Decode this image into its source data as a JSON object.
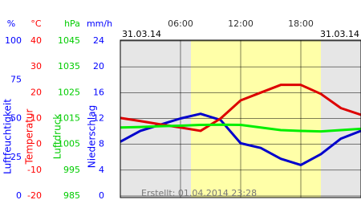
{
  "chart_data": {
    "type": "line",
    "date_left": "31.03.14",
    "date_right": "31.03.14",
    "footer": "Erstellt: 01.04.2014 23:28",
    "x": [
      0,
      2,
      4,
      6,
      8,
      10,
      12,
      14,
      16,
      18,
      20,
      22,
      24
    ],
    "xlim": [
      0,
      24
    ],
    "xticks": [
      {
        "value": 6,
        "label": "06:00"
      },
      {
        "value": 12,
        "label": "12:00"
      },
      {
        "value": 18,
        "label": "18:00"
      }
    ],
    "y_axes": [
      {
        "unit": "%",
        "title": "Luftfeuchtigkeit",
        "color": "#0000ff",
        "ylim": [
          0,
          100
        ],
        "yticks": [
          100,
          75,
          50,
          25,
          0
        ]
      },
      {
        "unit": "°C",
        "title": "Temperatur",
        "color": "#ff0000",
        "ylim": [
          -20,
          40
        ],
        "yticks": [
          40,
          30,
          20,
          10,
          0,
          -10,
          -20
        ]
      },
      {
        "unit": "hPa",
        "title": "Luftdruck",
        "color": "#00cc00",
        "ylim": [
          985,
          1045
        ],
        "yticks": [
          1045,
          1035,
          1025,
          1015,
          1005,
          995,
          985
        ]
      },
      {
        "unit": "mm/h",
        "title": "Niederschlag",
        "color": "#0000ff",
        "ylim": [
          0,
          24
        ],
        "yticks": [
          24,
          20,
          16,
          12,
          8,
          4,
          0
        ]
      }
    ],
    "series": [
      {
        "axis": 0,
        "color": "#0000cc",
        "values": [
          35,
          42,
          46,
          50,
          53,
          49,
          34,
          31,
          24,
          20,
          27,
          37,
          42
        ]
      },
      {
        "axis": 1,
        "color": "#dd0000",
        "values": [
          10.2,
          9,
          7.7,
          6.5,
          5.2,
          10,
          17,
          20,
          23,
          23,
          19.5,
          14,
          11.4
        ]
      },
      {
        "axis": 2,
        "color": "#00ee00",
        "values": [
          1011.5,
          1011.7,
          1012,
          1012.2,
          1012.5,
          1012.6,
          1012.5,
          1011.5,
          1010.5,
          1010.2,
          1010,
          1010.5,
          1011
        ]
      }
    ],
    "grid": true
  }
}
